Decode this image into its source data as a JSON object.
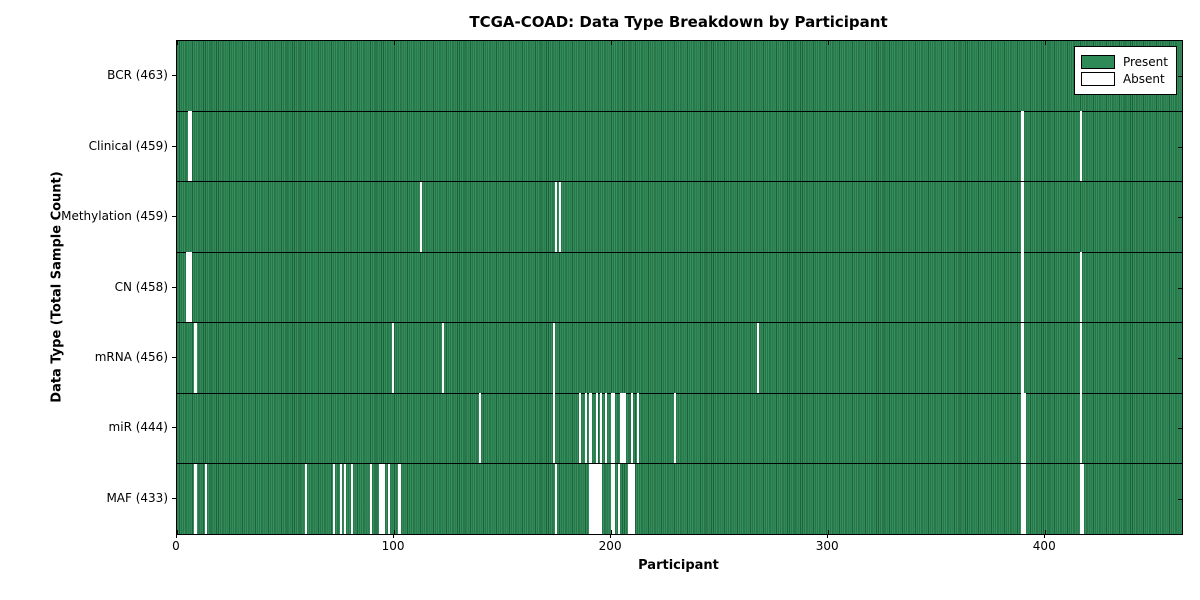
{
  "chart_data": {
    "type": "heatmap",
    "title": "TCGA-COAD: Data Type Breakdown by Participant",
    "xlabel": "Participant",
    "ylabel": "Data Type (Total Sample Count)",
    "x_ticks": [
      0,
      100,
      200,
      300,
      400
    ],
    "xlim": [
      0,
      463
    ],
    "total_participants": 463,
    "grid": false,
    "legend": {
      "position": "upper right",
      "entries": [
        {
          "label": "Present",
          "color": "#2e8b57"
        },
        {
          "label": "Absent",
          "color": "#ffffff"
        }
      ]
    },
    "colors": {
      "present": "#2e8b57",
      "present_edge": "#1e5c39",
      "absent": "#ffffff",
      "frame": "#000000"
    },
    "rows": [
      {
        "label": "BCR (463)",
        "data_type": "BCR",
        "present_count": 463,
        "absent_participants": []
      },
      {
        "label": "Clinical (459)",
        "data_type": "Clinical",
        "present_count": 459,
        "absent_participants": [
          5,
          6,
          389,
          416
        ]
      },
      {
        "label": "Methylation (459)",
        "data_type": "Methylation",
        "present_count": 459,
        "absent_participants": [
          112,
          174,
          176,
          389
        ]
      },
      {
        "label": "CN (458)",
        "data_type": "CN",
        "present_count": 458,
        "absent_participants": [
          4,
          5,
          6,
          389,
          416
        ]
      },
      {
        "label": "mRNA (456)",
        "data_type": "mRNA",
        "present_count": 456,
        "absent_participants": [
          8,
          99,
          122,
          173,
          267,
          389,
          416
        ]
      },
      {
        "label": "miR (444)",
        "data_type": "miR",
        "present_count": 444,
        "absent_participants": [
          139,
          173,
          185,
          188,
          190,
          193,
          195,
          197,
          200,
          201,
          204,
          205,
          206,
          209,
          212,
          229,
          389,
          390,
          416
        ]
      },
      {
        "label": "MAF (433)",
        "data_type": "MAF",
        "present_count": 433,
        "absent_participants": [
          8,
          13,
          59,
          72,
          75,
          77,
          80,
          89,
          93,
          94,
          95,
          97,
          102,
          174,
          190,
          191,
          192,
          193,
          194,
          195,
          200,
          201,
          203,
          208,
          209,
          210,
          389,
          390,
          416,
          417
        ]
      }
    ]
  }
}
